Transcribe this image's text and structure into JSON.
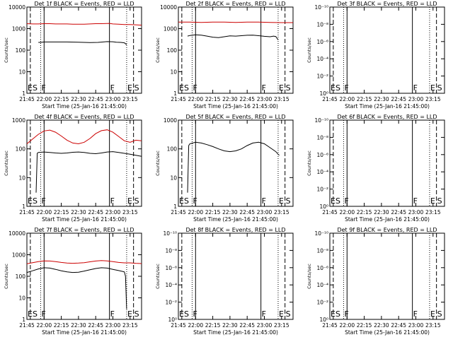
{
  "figure": {
    "background": "#ffffff"
  },
  "chart_data": [
    {
      "type": "line",
      "title": "Det 1f BLACK = Events, RED = LLD",
      "ylabel": "Counts/sec",
      "xlabel": "Start Time (25-Jan-16 21:45:00)",
      "yscale": "log",
      "ylim": [
        1,
        10000
      ],
      "y_tick_labels": [
        "1",
        "10",
        "100",
        "1000",
        "10000"
      ],
      "x_tick_labels": [
        "21:45",
        "22:00",
        "22:15",
        "22:30",
        "22:45",
        "23:00",
        "23:15"
      ],
      "xlim_minutes": [
        0,
        100
      ],
      "markers": [
        {
          "label": "ES",
          "t": 0,
          "style": "dashed"
        },
        {
          "label": "",
          "t": 3,
          "style": "dashed"
        },
        {
          "label": "F",
          "t": 12,
          "style": "dotted"
        },
        {
          "label": "",
          "t": 15,
          "style": "solid"
        },
        {
          "label": "F",
          "t": 72,
          "style": "solid"
        },
        {
          "label": "E",
          "t": 87,
          "style": "dotted"
        },
        {
          "label": "S",
          "t": 93,
          "style": "dashed"
        },
        {
          "label": "",
          "t": 100,
          "style": "dashed"
        }
      ],
      "series": [
        {
          "name": "Events",
          "color": "#000000",
          "x": [
            10,
            12,
            15,
            25,
            35,
            45,
            55,
            62,
            70,
            75,
            78,
            82,
            85,
            87
          ],
          "y": [
            230,
            230,
            240,
            240,
            240,
            235,
            225,
            230,
            250,
            245,
            235,
            230,
            220,
            180
          ]
        },
        {
          "name": "LLD",
          "color": "#cc0000",
          "x": [
            0,
            5,
            10,
            15,
            20,
            25,
            30,
            35,
            40,
            45,
            50,
            55,
            60,
            65,
            72,
            75,
            80,
            85,
            90,
            95,
            100
          ],
          "y": [
            1700,
            1650,
            1650,
            1700,
            1700,
            1650,
            1650,
            1650,
            1600,
            1600,
            1600,
            1650,
            1700,
            1700,
            1750,
            1650,
            1600,
            1550,
            1550,
            1500,
            1450
          ]
        }
      ]
    },
    {
      "type": "line",
      "title": "Det 2f BLACK = Events, RED = LLD",
      "ylabel": "Counts/sec",
      "xlabel": "Start Time (25-Jan-16 21:45:00)",
      "yscale": "log",
      "ylim": [
        1,
        10000
      ],
      "y_tick_labels": [
        "1",
        "10",
        "100",
        "1000",
        "10000"
      ],
      "x_tick_labels": [
        "21:45",
        "22:00",
        "22:15",
        "22:30",
        "22:45",
        "23:00",
        "23:15"
      ],
      "xlim_minutes": [
        0,
        100
      ],
      "markers": [
        {
          "label": "ES",
          "t": 0,
          "style": "dashed"
        },
        {
          "label": "",
          "t": 3,
          "style": "dashed"
        },
        {
          "label": "F",
          "t": 12,
          "style": "dotted"
        },
        {
          "label": "",
          "t": 15,
          "style": "solid"
        },
        {
          "label": "F",
          "t": 72,
          "style": "solid"
        },
        {
          "label": "E",
          "t": 87,
          "style": "dotted"
        },
        {
          "label": "S",
          "t": 93,
          "style": "dashed"
        },
        {
          "label": "",
          "t": 100,
          "style": "dashed"
        }
      ],
      "series": [
        {
          "name": "Events",
          "color": "#000000",
          "x": [
            8,
            10,
            15,
            20,
            25,
            30,
            35,
            40,
            45,
            50,
            55,
            60,
            65,
            70,
            75,
            80,
            83,
            85,
            87
          ],
          "y": [
            450,
            480,
            520,
            500,
            450,
            400,
            380,
            420,
            460,
            450,
            470,
            490,
            500,
            470,
            440,
            420,
            450,
            430,
            300
          ]
        },
        {
          "name": "LLD",
          "color": "#cc0000",
          "x": [
            0,
            10,
            20,
            30,
            40,
            50,
            60,
            70,
            80,
            90,
            100
          ],
          "y": [
            2000,
            2000,
            1950,
            2000,
            2000,
            1950,
            2000,
            2000,
            1950,
            1900,
            1900
          ]
        }
      ]
    },
    {
      "type": "line",
      "title": "Det 3f BLACK = Events, RED = LLD",
      "ylabel": "Counts/sec",
      "xlabel": "Start Time (25-Jan-16 21:45:00)",
      "yscale": "log",
      "ylim": [
        1,
        1e-10
      ],
      "y_tick_labels": [
        "10⁰",
        "10⁻²",
        "10⁻⁴",
        "10⁻⁶",
        "10⁻⁸",
        "10⁻¹⁰"
      ],
      "x_tick_labels": [
        "21:45",
        "22:00",
        "22:15",
        "22:30",
        "22:45",
        "23:00",
        "23:15"
      ],
      "xlim_minutes": [
        0,
        100
      ],
      "markers": [
        {
          "label": "ES",
          "t": 0,
          "style": "dashed"
        },
        {
          "label": "",
          "t": 3,
          "style": "dashed"
        },
        {
          "label": "F",
          "t": 12,
          "style": "dotted"
        },
        {
          "label": "",
          "t": 15,
          "style": "solid"
        },
        {
          "label": "F",
          "t": 72,
          "style": "solid"
        },
        {
          "label": "E",
          "t": 87,
          "style": "dotted"
        },
        {
          "label": "S",
          "t": 93,
          "style": "dashed"
        },
        {
          "label": "",
          "t": 100,
          "style": "dashed"
        }
      ],
      "series": []
    },
    {
      "type": "line",
      "title": "Det 4f BLACK = Events, RED = LLD",
      "ylabel": "Counts/sec",
      "xlabel": "Start Time (25-Jan-16 21:45:00)",
      "yscale": "log",
      "ylim": [
        1,
        1000
      ],
      "y_tick_labels": [
        "1",
        "10",
        "100",
        "1000"
      ],
      "x_tick_labels": [
        "21:45",
        "22:00",
        "22:15",
        "22:30",
        "22:45",
        "23:00",
        "23:15"
      ],
      "xlim_minutes": [
        0,
        100
      ],
      "markers": [
        {
          "label": "ES",
          "t": 0,
          "style": "dashed"
        },
        {
          "label": "",
          "t": 3,
          "style": "dashed"
        },
        {
          "label": "F",
          "t": 12,
          "style": "dotted"
        },
        {
          "label": "",
          "t": 15,
          "style": "solid"
        },
        {
          "label": "F",
          "t": 72,
          "style": "solid"
        },
        {
          "label": "E",
          "t": 87,
          "style": "dotted"
        },
        {
          "label": "S",
          "t": 93,
          "style": "dashed"
        },
        {
          "label": "",
          "t": 100,
          "style": "dashed"
        }
      ],
      "series": [
        {
          "name": "Events",
          "color": "#000000",
          "x": [
            8,
            9,
            10,
            15,
            20,
            25,
            30,
            35,
            40,
            45,
            50,
            55,
            60,
            65,
            70,
            75,
            80,
            85,
            90,
            95,
            100
          ],
          "y": [
            3,
            70,
            75,
            78,
            75,
            72,
            70,
            72,
            76,
            78,
            75,
            70,
            68,
            72,
            78,
            80,
            75,
            70,
            65,
            60,
            55
          ]
        },
        {
          "name": "LLD",
          "color": "#cc0000",
          "x": [
            0,
            5,
            10,
            15,
            20,
            25,
            30,
            35,
            40,
            45,
            50,
            55,
            60,
            65,
            70,
            75,
            80,
            85,
            90,
            95,
            100
          ],
          "y": [
            150,
            220,
            320,
            420,
            450,
            380,
            280,
            200,
            160,
            150,
            170,
            230,
            340,
            430,
            460,
            380,
            270,
            190,
            170,
            200,
            190
          ]
        }
      ]
    },
    {
      "type": "line",
      "title": "Det 5f BLACK = Events, RED = LLD",
      "ylabel": "Counts/sec",
      "xlabel": "Start Time (25-Jan-16 21:45:00)",
      "yscale": "log",
      "ylim": [
        1,
        1000
      ],
      "y_tick_labels": [
        "1",
        "10",
        "100",
        "1000"
      ],
      "x_tick_labels": [
        "21:45",
        "22:00",
        "22:15",
        "22:30",
        "22:45",
        "23:00",
        "23:15"
      ],
      "xlim_minutes": [
        0,
        100
      ],
      "markers": [
        {
          "label": "ES",
          "t": 0,
          "style": "dashed"
        },
        {
          "label": "",
          "t": 3,
          "style": "dashed"
        },
        {
          "label": "F",
          "t": 12,
          "style": "dotted"
        },
        {
          "label": "",
          "t": 15,
          "style": "solid"
        },
        {
          "label": "F",
          "t": 72,
          "style": "solid"
        },
        {
          "label": "E",
          "t": 87,
          "style": "dotted"
        },
        {
          "label": "S",
          "t": 93,
          "style": "dashed"
        },
        {
          "label": "",
          "t": 100,
          "style": "dashed"
        }
      ],
      "series": [
        {
          "name": "Events",
          "color": "#000000",
          "x": [
            8,
            9,
            10,
            15,
            20,
            25,
            30,
            35,
            40,
            45,
            50,
            55,
            60,
            65,
            70,
            75,
            80,
            85,
            87,
            88
          ],
          "y": [
            3,
            130,
            150,
            170,
            160,
            140,
            120,
            100,
            85,
            80,
            85,
            100,
            130,
            160,
            170,
            150,
            110,
            80,
            65,
            60
          ]
        }
      ]
    },
    {
      "type": "line",
      "title": "Det 6f BLACK = Events, RED = LLD",
      "ylabel": "Counts/sec",
      "xlabel": "Start Time (25-Jan-16 21:45:00)",
      "yscale": "log",
      "ylim": [
        1,
        1e-10
      ],
      "y_tick_labels": [
        "10⁰",
        "10⁻²",
        "10⁻⁴",
        "10⁻⁶",
        "10⁻⁸",
        "10⁻¹⁰"
      ],
      "x_tick_labels": [
        "21:45",
        "22:00",
        "22:15",
        "22:30",
        "22:45",
        "23:00",
        "23:15"
      ],
      "xlim_minutes": [
        0,
        100
      ],
      "markers": [
        {
          "label": "ES",
          "t": 0,
          "style": "dashed"
        },
        {
          "label": "",
          "t": 3,
          "style": "dashed"
        },
        {
          "label": "F",
          "t": 12,
          "style": "dotted"
        },
        {
          "label": "",
          "t": 15,
          "style": "solid"
        },
        {
          "label": "F",
          "t": 72,
          "style": "solid"
        },
        {
          "label": "E",
          "t": 87,
          "style": "dotted"
        },
        {
          "label": "S",
          "t": 93,
          "style": "dashed"
        },
        {
          "label": "",
          "t": 100,
          "style": "dashed"
        }
      ],
      "series": []
    },
    {
      "type": "line",
      "title": "Det 7f BLACK = Events, RED = LLD",
      "ylabel": "Counts/sec",
      "xlabel": "Start Time (25-Jan-16 21:45:00)",
      "yscale": "log",
      "ylim": [
        1,
        10000
      ],
      "y_tick_labels": [
        "1",
        "10",
        "100",
        "1000",
        "10000"
      ],
      "x_tick_labels": [
        "21:45",
        "22:00",
        "22:15",
        "22:30",
        "22:45",
        "23:00",
        "23:15"
      ],
      "xlim_minutes": [
        0,
        100
      ],
      "markers": [
        {
          "label": "ES",
          "t": 0,
          "style": "dashed"
        },
        {
          "label": "",
          "t": 3,
          "style": "dashed"
        },
        {
          "label": "F",
          "t": 12,
          "style": "dotted"
        },
        {
          "label": "",
          "t": 15,
          "style": "solid"
        },
        {
          "label": "F",
          "t": 72,
          "style": "solid"
        },
        {
          "label": "E",
          "t": 87,
          "style": "dotted"
        },
        {
          "label": "S",
          "t": 93,
          "style": "dashed"
        },
        {
          "label": "",
          "t": 100,
          "style": "dashed"
        }
      ],
      "series": [
        {
          "name": "Events",
          "color": "#000000",
          "x": [
            0,
            5,
            10,
            15,
            20,
            25,
            30,
            35,
            40,
            45,
            50,
            55,
            60,
            65,
            70,
            75,
            80,
            83,
            85,
            86,
            87
          ],
          "y": [
            150,
            180,
            220,
            250,
            240,
            210,
            180,
            160,
            150,
            155,
            175,
            200,
            230,
            250,
            240,
            210,
            185,
            170,
            160,
            100,
            3
          ]
        },
        {
          "name": "LLD",
          "color": "#cc0000",
          "x": [
            0,
            5,
            10,
            15,
            20,
            25,
            30,
            35,
            40,
            45,
            50,
            55,
            60,
            65,
            70,
            75,
            80,
            85,
            90,
            95,
            100
          ],
          "y": [
            380,
            430,
            480,
            520,
            510,
            480,
            440,
            410,
            400,
            410,
            430,
            470,
            510,
            540,
            520,
            480,
            440,
            420,
            420,
            400,
            390
          ]
        }
      ]
    },
    {
      "type": "line",
      "title": "Det 8f BLACK = Events, RED = LLD",
      "ylabel": "Counts/sec",
      "xlabel": "Start Time (25-Jan-16 21:45:00)",
      "yscale": "log",
      "ylim": [
        1,
        1e-10
      ],
      "y_tick_labels": [
        "10⁰",
        "10⁻²",
        "10⁻⁴",
        "10⁻⁶",
        "10⁻⁸",
        "10⁻¹⁰"
      ],
      "x_tick_labels": [
        "21:45",
        "22:00",
        "22:15",
        "22:30",
        "22:45",
        "23:00",
        "23:15"
      ],
      "xlim_minutes": [
        0,
        100
      ],
      "markers": [
        {
          "label": "ES",
          "t": 0,
          "style": "dashed"
        },
        {
          "label": "",
          "t": 3,
          "style": "dashed"
        },
        {
          "label": "F",
          "t": 12,
          "style": "dotted"
        },
        {
          "label": "",
          "t": 15,
          "style": "solid"
        },
        {
          "label": "F",
          "t": 72,
          "style": "solid"
        },
        {
          "label": "E",
          "t": 87,
          "style": "dotted"
        },
        {
          "label": "S",
          "t": 93,
          "style": "dashed"
        },
        {
          "label": "",
          "t": 100,
          "style": "dashed"
        }
      ],
      "series": []
    },
    {
      "type": "line",
      "title": "Det 9f BLACK = Events, RED = LLD",
      "ylabel": "Counts/sec",
      "xlabel": "Start Time (25-Jan-16 21:45:00)",
      "yscale": "log",
      "ylim": [
        1,
        1e-10
      ],
      "y_tick_labels": [
        "10⁰",
        "10⁻²",
        "10⁻⁴",
        "10⁻⁶",
        "10⁻⁸",
        "10⁻¹⁰"
      ],
      "x_tick_labels": [
        "21:45",
        "22:00",
        "22:15",
        "22:30",
        "22:45",
        "23:00",
        "23:15"
      ],
      "xlim_minutes": [
        0,
        100
      ],
      "markers": [
        {
          "label": "ES",
          "t": 0,
          "style": "dashed"
        },
        {
          "label": "",
          "t": 3,
          "style": "dashed"
        },
        {
          "label": "F",
          "t": 12,
          "style": "dotted"
        },
        {
          "label": "",
          "t": 15,
          "style": "solid"
        },
        {
          "label": "F",
          "t": 72,
          "style": "solid"
        },
        {
          "label": "E",
          "t": 87,
          "style": "dotted"
        },
        {
          "label": "S",
          "t": 93,
          "style": "dashed"
        },
        {
          "label": "",
          "t": 100,
          "style": "dashed"
        }
      ],
      "series": []
    }
  ]
}
